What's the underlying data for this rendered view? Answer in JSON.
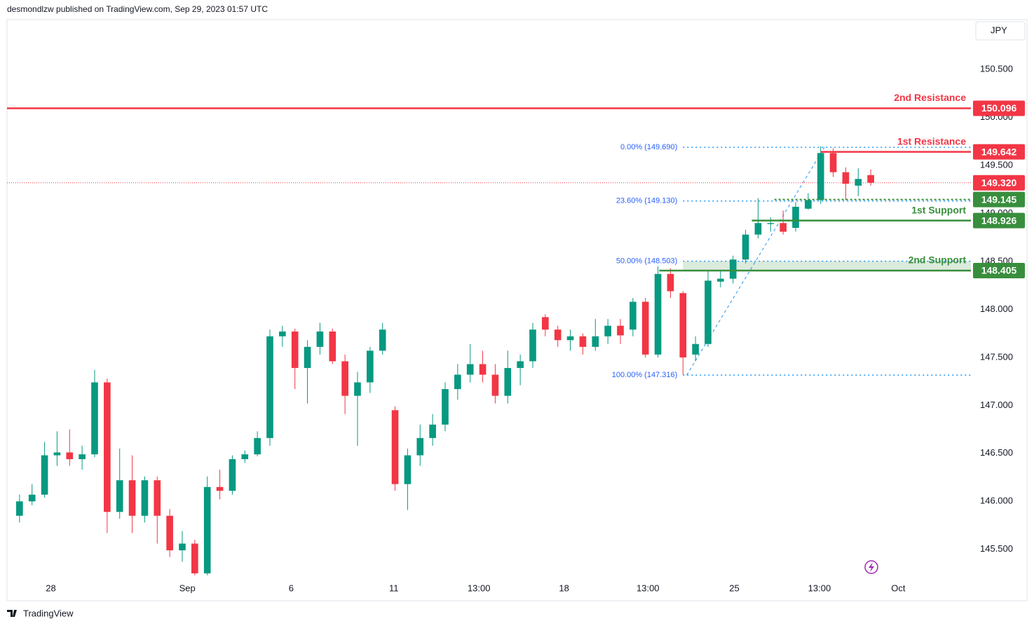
{
  "header": {
    "text": "desmondlzw published on TradingView.com, Sep 29, 2023 01:57 UTC"
  },
  "footer": {
    "brand": "TradingView"
  },
  "chart_data": {
    "type": "candlestick",
    "currency": "JPY",
    "up_color": "#089981",
    "down_color": "#f23645",
    "grid": false,
    "xlim": [
      -1,
      76
    ],
    "ylim": [
      145.22,
      151.02
    ],
    "xticks": [
      {
        "value": 2.5,
        "label": "28"
      },
      {
        "value": 13.4,
        "label": "Sep"
      },
      {
        "value": 21.7,
        "label": "6"
      },
      {
        "value": 29.9,
        "label": "11"
      },
      {
        "value": 36.7,
        "label": "13:00"
      },
      {
        "value": 43.5,
        "label": "18"
      },
      {
        "value": 50.2,
        "label": "13:00"
      },
      {
        "value": 57.1,
        "label": "25"
      },
      {
        "value": 63.9,
        "label": "13:00"
      },
      {
        "value": 70.2,
        "label": "Oct"
      }
    ],
    "yticks": [
      {
        "value": 145.5,
        "label": "145.500"
      },
      {
        "value": 146,
        "label": "146.000"
      },
      {
        "value": 146.5,
        "label": "146.500"
      },
      {
        "value": 147,
        "label": "147.000"
      },
      {
        "value": 147.5,
        "label": "147.500"
      },
      {
        "value": 148,
        "label": "148.000"
      },
      {
        "value": 148.5,
        "label": "148.500"
      },
      {
        "value": 149,
        "label": "149.000"
      },
      {
        "value": 149.5,
        "label": "149.500"
      },
      {
        "value": 150,
        "label": "150.000"
      },
      {
        "value": 150.5,
        "label": "150.500"
      }
    ],
    "candles": [
      [
        145.85,
        146.07,
        145.78,
        146.0
      ],
      [
        146.0,
        146.18,
        145.96,
        146.07
      ],
      [
        146.07,
        146.62,
        146.04,
        146.48
      ],
      [
        146.48,
        146.73,
        146.37,
        146.51
      ],
      [
        146.51,
        146.75,
        146.37,
        146.44
      ],
      [
        146.44,
        146.58,
        146.33,
        146.49
      ],
      [
        146.49,
        147.37,
        146.46,
        147.24
      ],
      [
        147.24,
        147.28,
        145.67,
        145.89
      ],
      [
        145.89,
        146.55,
        145.82,
        146.22
      ],
      [
        146.22,
        146.48,
        145.67,
        145.85
      ],
      [
        145.85,
        146.26,
        145.78,
        146.22
      ],
      [
        146.22,
        146.26,
        145.56,
        145.85
      ],
      [
        145.85,
        145.92,
        145.42,
        145.49
      ],
      [
        145.49,
        145.69,
        145.37,
        145.56
      ],
      [
        145.56,
        145.6,
        145.23,
        145.25
      ],
      [
        145.25,
        146.26,
        145.23,
        146.15
      ],
      [
        146.15,
        146.33,
        146.02,
        146.11
      ],
      [
        146.11,
        146.48,
        146.07,
        146.44
      ],
      [
        146.44,
        146.53,
        146.4,
        146.49
      ],
      [
        146.49,
        146.73,
        146.47,
        146.66
      ],
      [
        146.66,
        147.79,
        146.58,
        147.72
      ],
      [
        147.72,
        147.83,
        147.61,
        147.77
      ],
      [
        147.77,
        147.8,
        147.17,
        147.39
      ],
      [
        147.39,
        147.68,
        147.02,
        147.61
      ],
      [
        147.61,
        147.86,
        147.53,
        147.77
      ],
      [
        147.77,
        147.8,
        147.43,
        147.46
      ],
      [
        147.46,
        147.53,
        146.91,
        147.1
      ],
      [
        147.1,
        147.35,
        146.58,
        147.24
      ],
      [
        147.24,
        147.61,
        147.13,
        147.57
      ],
      [
        147.57,
        147.86,
        147.53,
        147.79
      ],
      [
        146.95,
        146.99,
        146.11,
        146.18
      ],
      [
        146.18,
        146.55,
        145.91,
        146.48
      ],
      [
        146.48,
        146.8,
        146.37,
        146.66
      ],
      [
        146.66,
        146.91,
        146.58,
        146.8
      ],
      [
        146.8,
        147.24,
        146.73,
        147.17
      ],
      [
        147.17,
        147.43,
        147.06,
        147.32
      ],
      [
        147.32,
        147.64,
        147.24,
        147.43
      ],
      [
        147.43,
        147.57,
        147.24,
        147.32
      ],
      [
        147.32,
        147.43,
        147.02,
        147.1
      ],
      [
        147.1,
        147.57,
        147.02,
        147.39
      ],
      [
        147.39,
        147.53,
        147.21,
        147.46
      ],
      [
        147.46,
        147.86,
        147.39,
        147.79
      ],
      [
        147.92,
        147.95,
        147.72,
        147.79
      ],
      [
        147.79,
        147.83,
        147.61,
        147.68
      ],
      [
        147.68,
        147.79,
        147.57,
        147.72
      ],
      [
        147.72,
        147.75,
        147.53,
        147.61
      ],
      [
        147.61,
        147.9,
        147.57,
        147.72
      ],
      [
        147.72,
        147.9,
        147.64,
        147.83
      ],
      [
        147.83,
        147.9,
        147.64,
        147.73
      ],
      [
        147.79,
        148.12,
        147.72,
        148.08
      ],
      [
        148.08,
        148.12,
        147.5,
        147.53
      ],
      [
        147.53,
        148.45,
        147.5,
        148.37
      ],
      [
        148.37,
        148.43,
        148.12,
        148.19
      ],
      [
        148.17,
        148.19,
        147.32,
        147.5
      ],
      [
        147.53,
        147.72,
        147.46,
        147.64
      ],
      [
        147.64,
        148.41,
        147.61,
        148.3
      ],
      [
        148.29,
        148.41,
        148.23,
        148.32
      ],
      [
        148.32,
        148.56,
        148.27,
        148.52
      ],
      [
        148.52,
        148.83,
        148.48,
        148.78
      ],
      [
        148.78,
        149.16,
        148.74,
        148.9
      ],
      [
        148.89,
        148.96,
        148.81,
        148.9
      ],
      [
        148.9,
        149.03,
        148.78,
        148.81
      ],
      [
        148.85,
        149.12,
        148.81,
        149.07
      ],
      [
        149.05,
        149.21,
        149.04,
        149.14
      ],
      [
        149.14,
        149.7,
        149.1,
        149.63
      ],
      [
        149.63,
        149.68,
        149.38,
        149.43
      ],
      [
        149.43,
        149.48,
        149.14,
        149.31
      ],
      [
        149.29,
        149.47,
        149.18,
        149.36
      ],
      [
        149.4,
        149.46,
        149.29,
        149.32
      ]
    ],
    "last_price": {
      "value": 149.32,
      "label": "149.320",
      "color": "#f23645"
    },
    "levels": [
      {
        "name": "2nd Resistance",
        "value": 150.096,
        "color": "#f23645"
      },
      {
        "name": "1st Resistance",
        "value": 149.642,
        "color": "#f23645",
        "x_start": 64
      },
      {
        "value": 149.145,
        "color": "#388e3c",
        "x_start": 60.3,
        "style": "dotted"
      },
      {
        "name": "1st Support",
        "value": 148.926,
        "color": "#388e3c",
        "x_start": 58.5
      },
      {
        "name": "2nd Support",
        "value": 148.405,
        "color": "#388e3c",
        "x_start": 51.1,
        "zone_top": 148.503
      }
    ],
    "fib": [
      {
        "label": "0.00% (149.690)",
        "value": 149.69
      },
      {
        "label": "23.60% (149.130)",
        "value": 149.13
      },
      {
        "label": "50.00% (148.503)",
        "value": 148.503
      },
      {
        "label": "100.00% (147.316)",
        "value": 147.316
      }
    ],
    "fib_color": "#2196f3",
    "fib_x_start": 53,
    "fib_anchor_x": [
      53.3,
      64.3
    ]
  }
}
